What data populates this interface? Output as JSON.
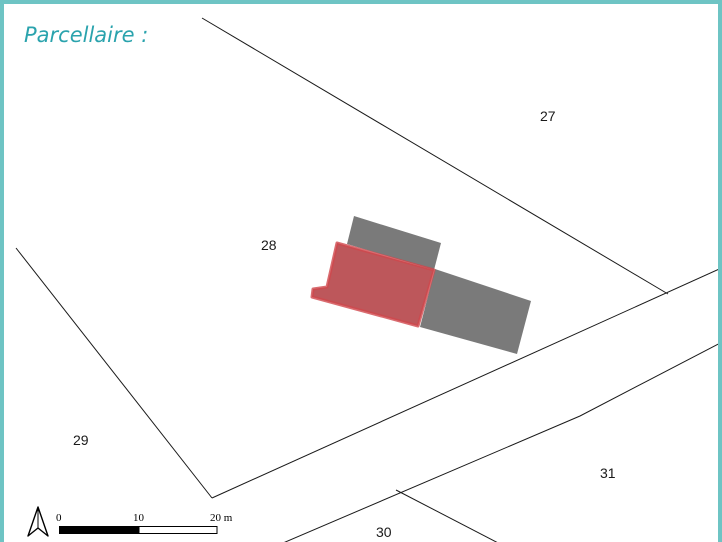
{
  "title": "Parcellaire :",
  "parcels": [
    {
      "id": "27",
      "label": "27"
    },
    {
      "id": "28",
      "label": "28"
    },
    {
      "id": "29",
      "label": "29"
    },
    {
      "id": "30",
      "label": "30"
    },
    {
      "id": "31",
      "label": "31"
    }
  ],
  "scale_bar": {
    "labels": [
      "0",
      "10",
      "20 m"
    ]
  },
  "north_arrow": {
    "icon": "north-arrow-icon"
  },
  "colors": {
    "frame_border": "#6ec4c4",
    "title": "#2aa3ad",
    "parcel_lines": "#1a1a1a",
    "existing_building": "#7a7a7a",
    "project_building_fill": "#b23a3e",
    "project_building_outline": "#d0474c"
  }
}
